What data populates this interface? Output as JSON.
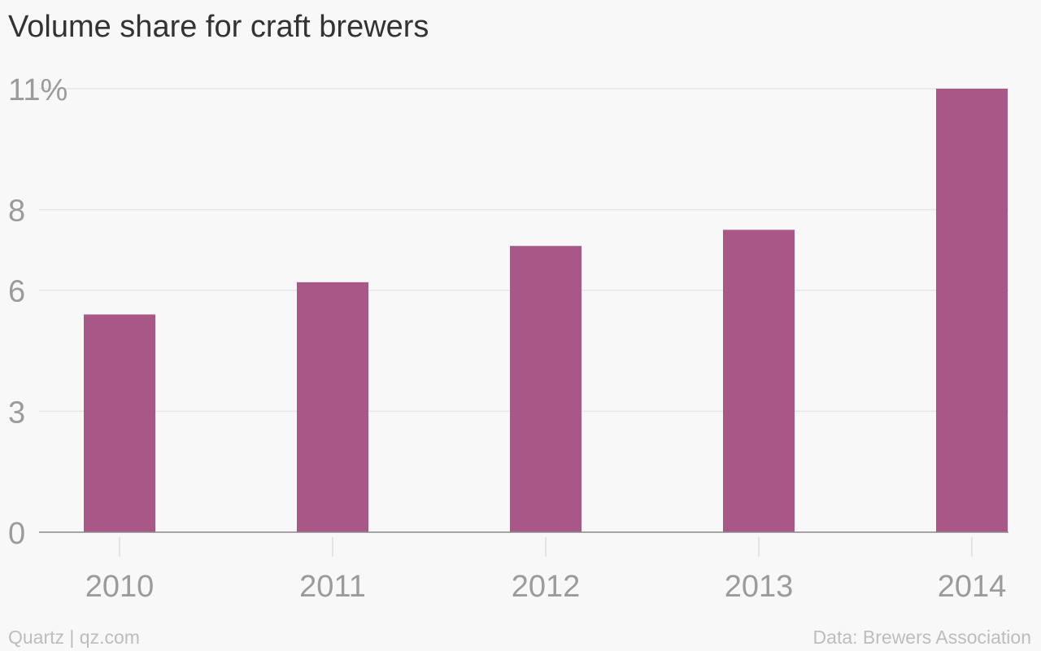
{
  "chart_data": {
    "type": "bar",
    "title": "Volume share for craft brewers",
    "xlabel": "",
    "ylabel": "",
    "categories": [
      "2010",
      "2011",
      "2012",
      "2013",
      "2014"
    ],
    "values": [
      5.4,
      6.2,
      7.1,
      7.5,
      11.0
    ],
    "ylim": [
      0,
      11
    ],
    "y_ticks": [
      {
        "value": 0,
        "label": "0"
      },
      {
        "value": 3,
        "label": "3"
      },
      {
        "value": 6,
        "label": "6"
      },
      {
        "value": 8,
        "label": "8"
      },
      {
        "value": 11,
        "label": "11%"
      }
    ],
    "grid": true,
    "bar_color": "#a85786",
    "source": "Data: Brewers Association",
    "credit": "Quartz | qz.com"
  }
}
